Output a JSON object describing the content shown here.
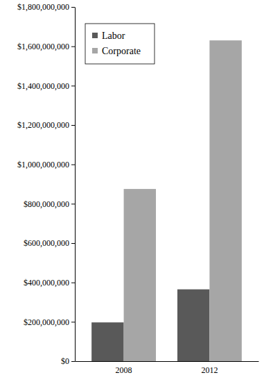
{
  "chart_data": {
    "type": "bar",
    "categories": [
      "2008",
      "2012"
    ],
    "series": [
      {
        "name": "Labor",
        "color": "#595959",
        "values": [
          197000000,
          365000000
        ]
      },
      {
        "name": "Corporate",
        "color": "#a6a6a6",
        "values": [
          875000000,
          1630000000
        ]
      }
    ],
    "ylim": [
      0,
      1800000000
    ],
    "yticks": [
      {
        "value": 0,
        "label": "$0"
      },
      {
        "value": 200000000,
        "label": "$200,000,000"
      },
      {
        "value": 400000000,
        "label": "$400,000,000"
      },
      {
        "value": 600000000,
        "label": "$600,000,000"
      },
      {
        "value": 800000000,
        "label": "$800,000,000"
      },
      {
        "value": 1000000000,
        "label": "$1,000,000,000"
      },
      {
        "value": 1200000000,
        "label": "$1,200,000,000"
      },
      {
        "value": 1400000000,
        "label": "$1,400,000,000"
      },
      {
        "value": 1600000000,
        "label": "$1,600,000,000"
      },
      {
        "value": 1800000000,
        "label": "$1,800,000,000"
      }
    ],
    "grid": false,
    "legend": "upper left"
  }
}
